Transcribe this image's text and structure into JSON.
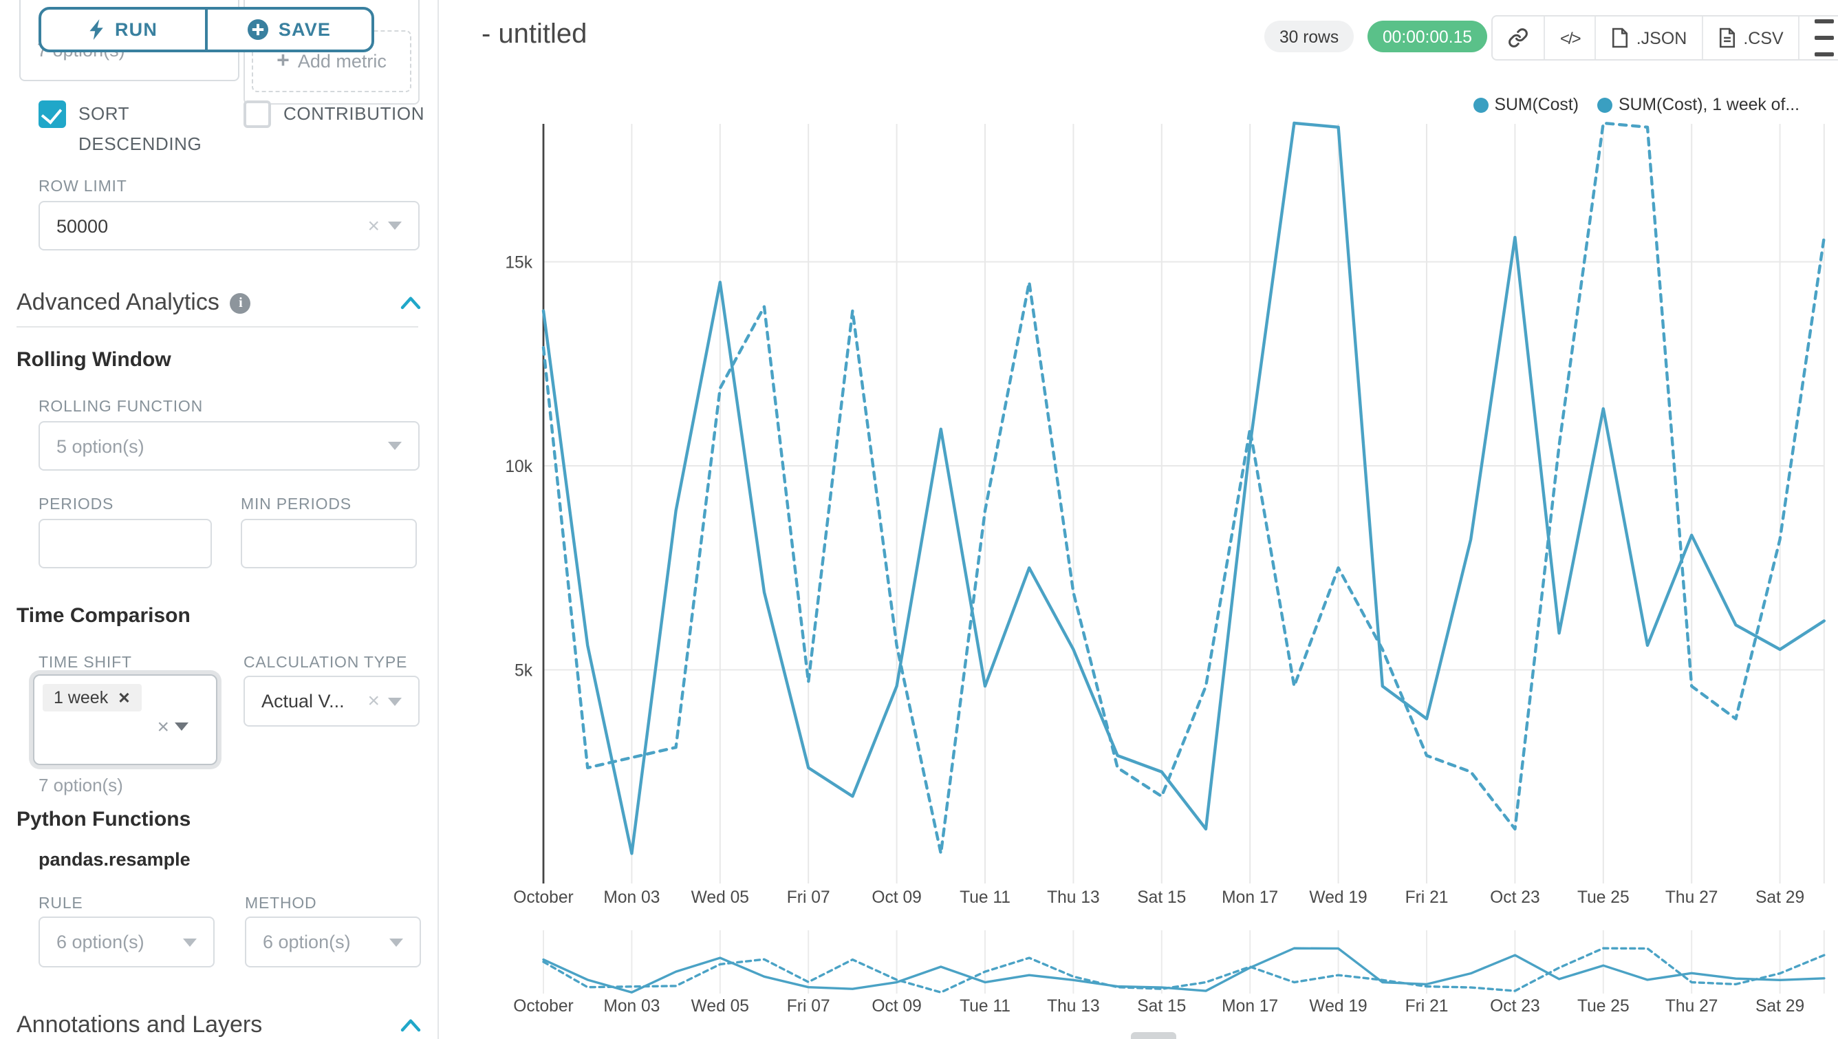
{
  "colors": {
    "accent": "#20a7c9",
    "run_save_teal": "#39809f",
    "line_teal": "#4aa2c5",
    "legend_dot": "#3a9fc1",
    "success_green": "#5ac189",
    "grid": "#e8e8e8",
    "axis": "#454545"
  },
  "toolbar": {
    "run_label": "RUN",
    "save_label": "SAVE"
  },
  "left_panel": {
    "groupby_value": "7 option(s)",
    "add_metric_label": "Add metric",
    "sort_descending_label": "SORT DESCENDING",
    "contribution_label": "CONTRIBUTION",
    "row_limit_label": "ROW LIMIT",
    "row_limit_value": "50000",
    "advanced_analytics_title": "Advanced Analytics",
    "rolling_window_title": "Rolling Window",
    "rolling_function_label": "ROLLING FUNCTION",
    "rolling_function_value": "5 option(s)",
    "periods_label": "PERIODS",
    "min_periods_label": "MIN PERIODS",
    "time_comparison_title": "Time Comparison",
    "time_shift_label": "TIME SHIFT",
    "time_shift_tag": "1 week",
    "time_shift_helper": "7 option(s)",
    "calculation_type_label": "CALCULATION TYPE",
    "calculation_type_value": "Actual V...",
    "python_functions_title": "Python Functions",
    "python_functions_subtitle": "pandas.resample",
    "rule_label": "RULE",
    "rule_value": "6 option(s)",
    "method_label": "METHOD",
    "method_value": "6 option(s)",
    "annotations_title": "Annotations and Layers"
  },
  "header": {
    "title": "- untitled",
    "rows_badge": "30 rows",
    "timer": "00:00:00.15",
    "json_label": ".JSON",
    "csv_label": ".CSV"
  },
  "chart_data": {
    "type": "line",
    "title": "",
    "xlabel": "",
    "ylabel": "",
    "ylim": [
      0,
      19000
    ],
    "grid": true,
    "legend_position": "top-right",
    "x": [
      "Oct 01",
      "Oct 02",
      "Oct 03",
      "Oct 04",
      "Oct 05",
      "Oct 06",
      "Oct 07",
      "Oct 08",
      "Oct 09",
      "Oct 10",
      "Oct 11",
      "Oct 12",
      "Oct 13",
      "Oct 14",
      "Oct 15",
      "Oct 16",
      "Oct 17",
      "Oct 18",
      "Oct 19",
      "Oct 20",
      "Oct 21",
      "Oct 22",
      "Oct 23",
      "Oct 24",
      "Oct 25",
      "Oct 26",
      "Oct 27",
      "Oct 28",
      "Oct 29",
      "Oct 30"
    ],
    "x_tick_labels": [
      "October",
      "Mon 03",
      "Wed 05",
      "Fri 07",
      "Oct 09",
      "Tue 11",
      "Thu 13",
      "Sat 15",
      "Mon 17",
      "Wed 19",
      "Fri 21",
      "Oct 23",
      "Tue 25",
      "Thu 27",
      "Sat 29"
    ],
    "y_ticks": [
      {
        "value": 5000,
        "label": "5k"
      },
      {
        "value": 10000,
        "label": "10k"
      },
      {
        "value": 15000,
        "label": "15k"
      }
    ],
    "series": [
      {
        "name": "SUM(Cost)",
        "dashed": false,
        "color": "#4aa2c5",
        "values": [
          13800,
          5600,
          500,
          8900,
          14500,
          6900,
          2600,
          1900,
          4600,
          10900,
          4600,
          7500,
          5500,
          2900,
          2500,
          1100,
          10500,
          18400,
          18300,
          4600,
          3800,
          8200,
          15600,
          5900,
          11400,
          5600,
          8300,
          6100,
          5500,
          6200
        ]
      },
      {
        "name": "SUM(Cost), 1 week of...",
        "dashed": true,
        "color": "#4aa2c5",
        "values": [
          12900,
          2600,
          2850,
          3100,
          11900,
          13900,
          4700,
          13800,
          5600,
          500,
          8900,
          14500,
          6900,
          2600,
          1900,
          4600,
          10900,
          4600,
          7500,
          5500,
          2900,
          2500,
          1100,
          10500,
          18400,
          18300,
          4600,
          3800,
          8200,
          15600
        ]
      }
    ]
  }
}
